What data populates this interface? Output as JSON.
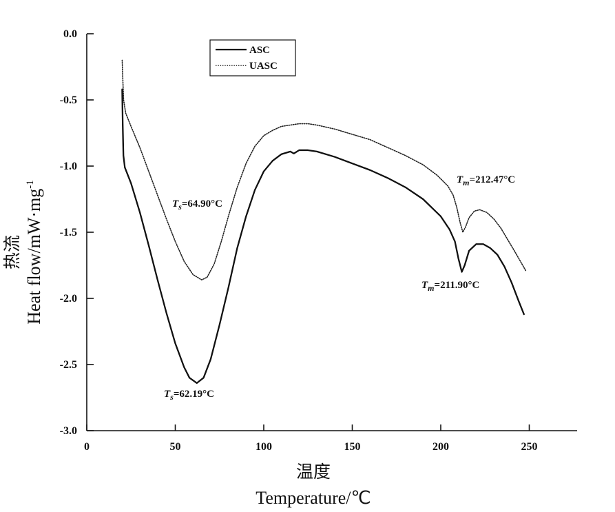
{
  "chart_data": {
    "type": "line",
    "xlabel_cn": "温度",
    "xlabel_en": "Temperature/℃",
    "ylabel_cn": "热流",
    "ylabel_en": "Heat  flow/mW·mg",
    "ylabel_sup": "-1",
    "xlim": [
      0,
      275
    ],
    "ylim": [
      -3.0,
      0.0
    ],
    "x_ticks": [
      0,
      50,
      100,
      150,
      200,
      250
    ],
    "x_tick_labels": [
      "0",
      "50",
      "100",
      "150",
      "200",
      "250"
    ],
    "y_ticks": [
      0.0,
      -0.5,
      -1.0,
      -1.5,
      -2.0,
      -2.5,
      -3.0
    ],
    "y_tick_labels": [
      "0.0",
      "-0.5",
      "-1.0",
      "-1.5",
      "-2.0",
      "-2.5",
      "-3.0"
    ],
    "legend_position": "top-left",
    "series": [
      {
        "name": "ASC",
        "style": "solid",
        "color": "#111111",
        "points": [
          [
            20.0,
            -0.42
          ],
          [
            20.3,
            -0.68
          ],
          [
            20.7,
            -0.92
          ],
          [
            21.5,
            -1.01
          ],
          [
            25,
            -1.13
          ],
          [
            30,
            -1.35
          ],
          [
            35,
            -1.6
          ],
          [
            40,
            -1.86
          ],
          [
            45,
            -2.11
          ],
          [
            50,
            -2.34
          ],
          [
            55,
            -2.52
          ],
          [
            58,
            -2.6
          ],
          [
            62.19,
            -2.64
          ],
          [
            66,
            -2.6
          ],
          [
            70,
            -2.46
          ],
          [
            75,
            -2.2
          ],
          [
            80,
            -1.92
          ],
          [
            85,
            -1.62
          ],
          [
            90,
            -1.38
          ],
          [
            95,
            -1.18
          ],
          [
            100,
            -1.04
          ],
          [
            105,
            -0.96
          ],
          [
            110,
            -0.91
          ],
          [
            115,
            -0.89
          ],
          [
            117,
            -0.905
          ],
          [
            120,
            -0.88
          ],
          [
            125,
            -0.88
          ],
          [
            130,
            -0.89
          ],
          [
            140,
            -0.93
          ],
          [
            150,
            -0.98
          ],
          [
            160,
            -1.03
          ],
          [
            170,
            -1.09
          ],
          [
            180,
            -1.16
          ],
          [
            190,
            -1.25
          ],
          [
            200,
            -1.38
          ],
          [
            205,
            -1.48
          ],
          [
            208,
            -1.57
          ],
          [
            210,
            -1.7
          ],
          [
            211.9,
            -1.8
          ],
          [
            213.5,
            -1.75
          ],
          [
            216,
            -1.64
          ],
          [
            220,
            -1.59
          ],
          [
            224,
            -1.59
          ],
          [
            228,
            -1.62
          ],
          [
            232,
            -1.67
          ],
          [
            236,
            -1.76
          ],
          [
            240,
            -1.88
          ],
          [
            244,
            -2.02
          ],
          [
            247,
            -2.12
          ]
        ]
      },
      {
        "name": "UASC",
        "style": "dotted",
        "color": "#222222",
        "points": [
          [
            20.0,
            -0.2
          ],
          [
            20.3,
            -0.32
          ],
          [
            20.8,
            -0.5
          ],
          [
            22,
            -0.6
          ],
          [
            25,
            -0.7
          ],
          [
            30,
            -0.86
          ],
          [
            35,
            -1.04
          ],
          [
            40,
            -1.22
          ],
          [
            45,
            -1.4
          ],
          [
            50,
            -1.57
          ],
          [
            55,
            -1.72
          ],
          [
            60,
            -1.82
          ],
          [
            64.9,
            -1.86
          ],
          [
            68,
            -1.84
          ],
          [
            72,
            -1.74
          ],
          [
            76,
            -1.57
          ],
          [
            80,
            -1.38
          ],
          [
            85,
            -1.16
          ],
          [
            90,
            -0.98
          ],
          [
            95,
            -0.85
          ],
          [
            100,
            -0.77
          ],
          [
            105,
            -0.73
          ],
          [
            110,
            -0.7
          ],
          [
            115,
            -0.69
          ],
          [
            120,
            -0.68
          ],
          [
            125,
            -0.68
          ],
          [
            130,
            -0.69
          ],
          [
            140,
            -0.72
          ],
          [
            150,
            -0.76
          ],
          [
            160,
            -0.8
          ],
          [
            170,
            -0.86
          ],
          [
            180,
            -0.92
          ],
          [
            190,
            -0.99
          ],
          [
            198,
            -1.07
          ],
          [
            204,
            -1.15
          ],
          [
            207,
            -1.22
          ],
          [
            209,
            -1.31
          ],
          [
            211,
            -1.43
          ],
          [
            212.47,
            -1.5
          ],
          [
            214,
            -1.46
          ],
          [
            216,
            -1.39
          ],
          [
            219,
            -1.34
          ],
          [
            222,
            -1.33
          ],
          [
            226,
            -1.35
          ],
          [
            230,
            -1.4
          ],
          [
            234,
            -1.47
          ],
          [
            238,
            -1.56
          ],
          [
            242,
            -1.65
          ],
          [
            245,
            -1.72
          ],
          [
            248,
            -1.79
          ]
        ]
      }
    ],
    "annotations": [
      {
        "sym": "T",
        "sub": "s",
        "value": "=64.90°C",
        "series": "UASC"
      },
      {
        "sym": "T",
        "sub": "s",
        "value": "=62.19°C",
        "series": "ASC"
      },
      {
        "sym": "T",
        "sub": "m",
        "value": "=212.47°C",
        "series": "UASC"
      },
      {
        "sym": "T",
        "sub": "m",
        "value": "=211.90°C",
        "series": "ASC"
      }
    ]
  }
}
